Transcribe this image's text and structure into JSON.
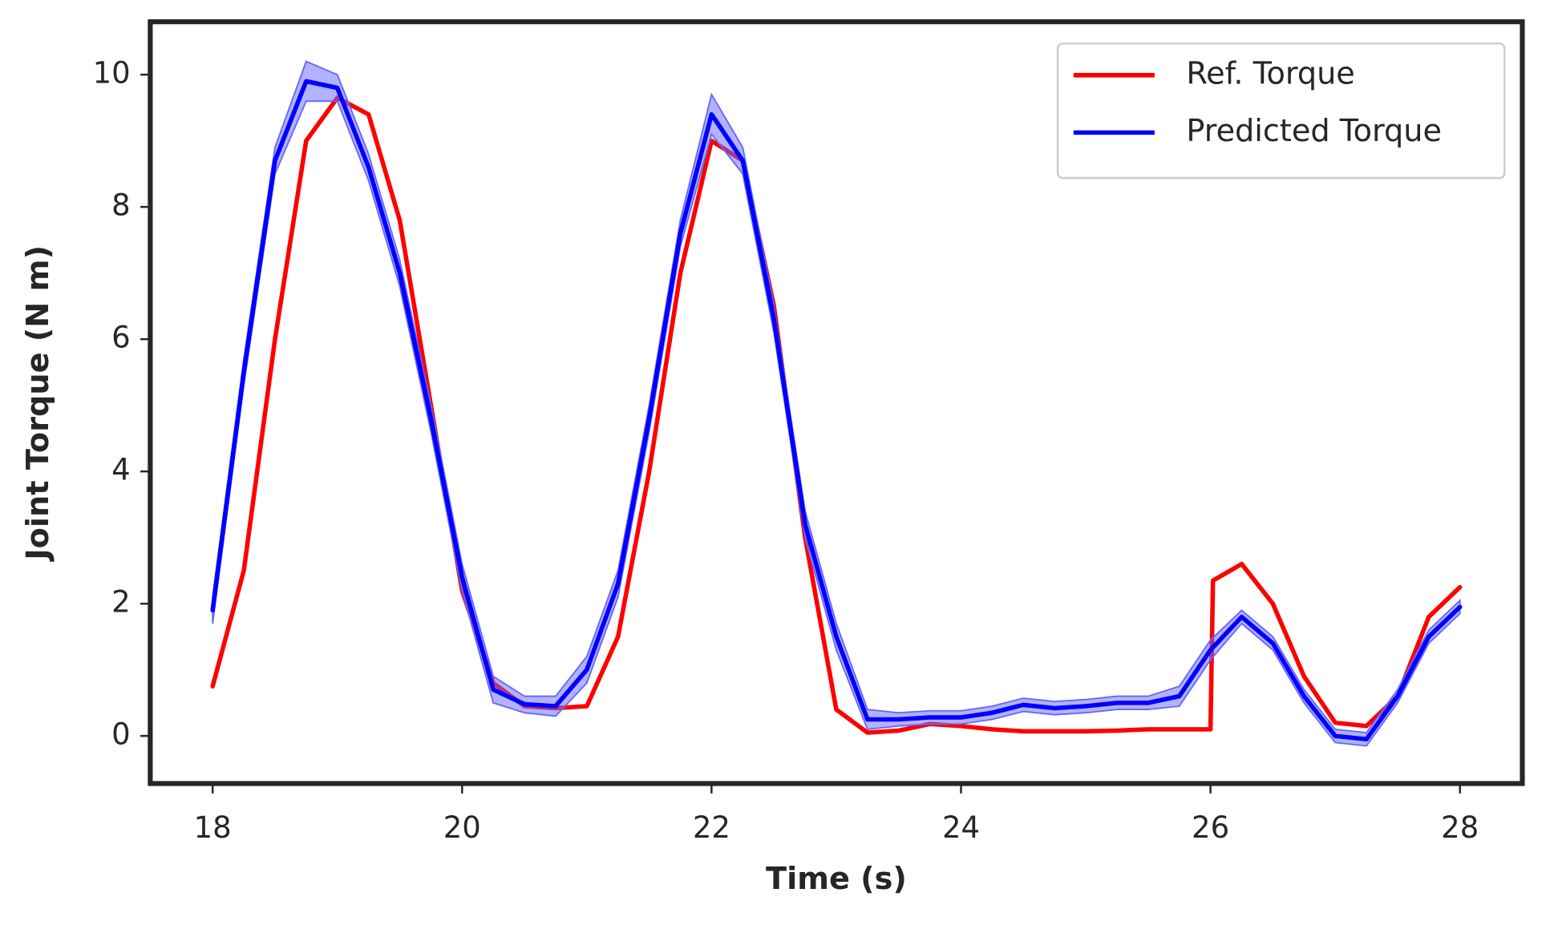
{
  "chart_data": {
    "type": "line",
    "xlabel": "Time (s)",
    "ylabel": "Joint Torque (N m)",
    "xlim": [
      17.5,
      28.5
    ],
    "ylim": [
      -0.72,
      10.8
    ],
    "xticks": [
      18,
      20,
      22,
      24,
      26,
      28
    ],
    "yticks": [
      0,
      2,
      4,
      6,
      8,
      10
    ],
    "legend": "upper right",
    "series": [
      {
        "name": "Ref. Torque",
        "color": "#ff0000",
        "x": [
          18,
          18.25,
          18.5,
          18.75,
          19,
          19.25,
          19.5,
          19.75,
          20,
          20.25,
          20.5,
          20.75,
          21,
          21.25,
          21.5,
          21.75,
          22,
          22.25,
          22.5,
          22.75,
          23,
          23.25,
          23.5,
          23.75,
          24,
          24.25,
          24.5,
          24.75,
          25,
          25.25,
          25.5,
          25.75,
          26,
          26.02,
          26.25,
          26.5,
          26.75,
          27,
          27.25,
          27.5,
          27.75,
          28
        ],
        "values": [
          0.75,
          2.5,
          6.0,
          9.0,
          9.65,
          9.4,
          7.8,
          5.0,
          2.2,
          0.8,
          0.45,
          0.42,
          0.45,
          1.5,
          4.0,
          7.0,
          9.0,
          8.7,
          6.5,
          3.0,
          0.4,
          0.05,
          0.08,
          0.18,
          0.15,
          0.1,
          0.07,
          0.07,
          0.07,
          0.08,
          0.1,
          0.1,
          0.1,
          2.35,
          2.6,
          2.0,
          0.9,
          0.2,
          0.15,
          0.6,
          1.8,
          2.25
        ]
      },
      {
        "name": "Predicted Torque",
        "color": "#0000ff",
        "band_color": "#6666ff",
        "x": [
          18,
          18.25,
          18.5,
          18.75,
          19,
          19.25,
          19.5,
          19.75,
          20,
          20.25,
          20.5,
          20.75,
          21,
          21.25,
          21.5,
          21.75,
          22,
          22.25,
          22.5,
          22.75,
          23,
          23.25,
          23.5,
          23.75,
          24,
          24.25,
          24.5,
          24.75,
          25,
          25.25,
          25.5,
          25.75,
          26,
          26.25,
          26.5,
          26.75,
          27,
          27.25,
          27.5,
          27.75,
          28
        ],
        "values": [
          1.9,
          5.5,
          8.7,
          9.9,
          9.8,
          8.6,
          7.0,
          4.8,
          2.4,
          0.7,
          0.48,
          0.45,
          1.0,
          2.3,
          4.8,
          7.6,
          9.4,
          8.7,
          6.3,
          3.2,
          1.5,
          0.25,
          0.25,
          0.28,
          0.28,
          0.35,
          0.47,
          0.42,
          0.45,
          0.5,
          0.5,
          0.6,
          1.3,
          1.8,
          1.4,
          0.6,
          0.0,
          -0.05,
          0.6,
          1.5,
          1.95
        ],
        "lower": [
          1.7,
          5.3,
          8.5,
          9.6,
          9.6,
          8.4,
          6.8,
          4.6,
          2.2,
          0.5,
          0.35,
          0.3,
          0.8,
          2.1,
          4.6,
          7.4,
          9.1,
          8.5,
          6.1,
          3.0,
          1.3,
          0.1,
          0.15,
          0.18,
          0.18,
          0.25,
          0.37,
          0.32,
          0.35,
          0.4,
          0.4,
          0.45,
          1.15,
          1.7,
          1.3,
          0.5,
          -0.1,
          -0.15,
          0.5,
          1.4,
          1.85
        ],
        "upper": [
          2.1,
          5.7,
          8.9,
          10.2,
          10.0,
          8.8,
          7.2,
          5.0,
          2.6,
          0.9,
          0.6,
          0.6,
          1.2,
          2.5,
          5.0,
          7.8,
          9.7,
          8.9,
          6.5,
          3.4,
          1.7,
          0.4,
          0.35,
          0.38,
          0.38,
          0.45,
          0.57,
          0.52,
          0.55,
          0.6,
          0.6,
          0.75,
          1.45,
          1.9,
          1.5,
          0.7,
          0.1,
          0.05,
          0.7,
          1.6,
          2.05
        ]
      }
    ]
  }
}
